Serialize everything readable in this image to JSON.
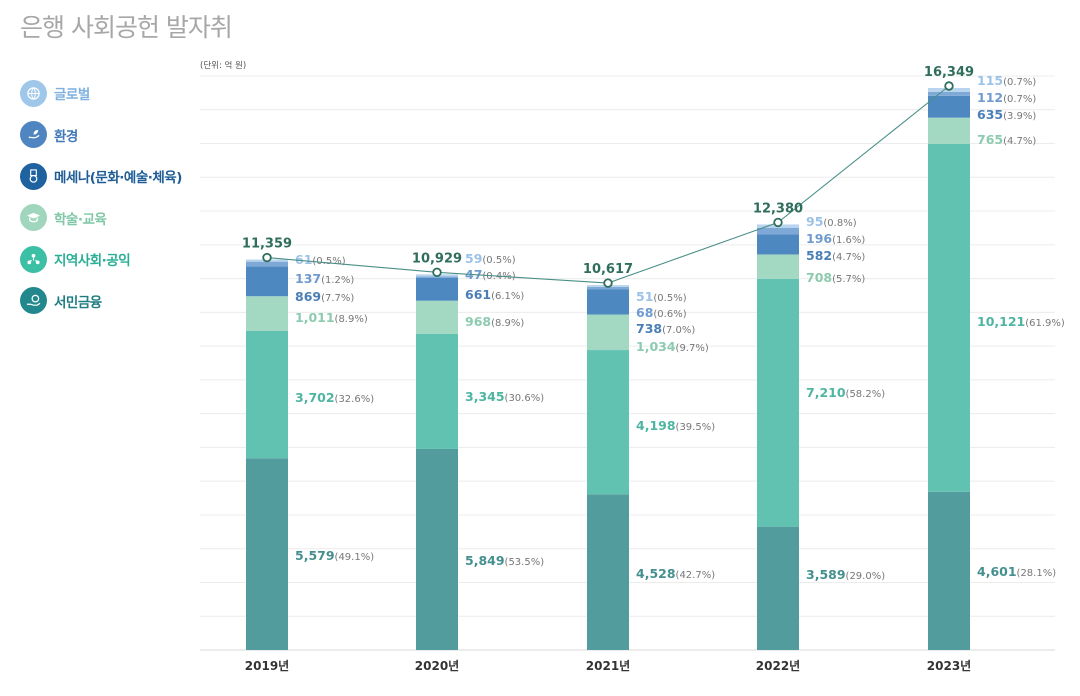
{
  "page": {
    "title": "은행 사회공헌 발자취"
  },
  "legend": [
    {
      "label": "글로벌",
      "icon": "globe-icon",
      "color": "#9fc7ea",
      "text_color": "#7fb0e0"
    },
    {
      "label": "환경",
      "icon": "leaf-hand-icon",
      "color": "#4f86c1",
      "text_color": "#3f78b8"
    },
    {
      "label": "메세나(문화·예술·체육)",
      "icon": "medal-icon",
      "color": "#1e62a0",
      "text_color": "#1d5c96"
    },
    {
      "label": "학술·교육",
      "icon": "education-icon",
      "color": "#9fd6bd",
      "text_color": "#7fc7a6"
    },
    {
      "label": "지역사회·공익",
      "icon": "community-icon",
      "color": "#3bbfa5",
      "text_color": "#2aae95"
    },
    {
      "label": "서민금융",
      "icon": "finance-icon",
      "color": "#23888e",
      "text_color": "#1f7d83"
    }
  ],
  "chart_data": {
    "type": "bar",
    "stacked": true,
    "unit_label": "(단위: 억 원)",
    "categories": [
      "2019년",
      "2020년",
      "2021년",
      "2022년",
      "2023년"
    ],
    "ylim": [
      0,
      17000
    ],
    "grid": true,
    "series": [
      {
        "name": "서민금융",
        "color": "#529c9e",
        "label_color": "#45908f",
        "values": [
          5579,
          5849,
          4528,
          3589,
          4601
        ],
        "labels": [
          "5,579",
          "5,849",
          "4,528",
          "3,589",
          "4,601"
        ],
        "pcts": [
          "(49.1%)",
          "(53.5%)",
          "(42.7%)",
          "(29.0%)",
          "(28.1%)"
        ]
      },
      {
        "name": "지역사회·공익",
        "color": "#61c2b2",
        "label_color": "#4fb5a3",
        "values": [
          3702,
          3345,
          4198,
          7210,
          10121
        ],
        "labels": [
          "3,702",
          "3,345",
          "4,198",
          "7,210",
          "10,121"
        ],
        "pcts": [
          "(32.6%)",
          "(30.6%)",
          "(39.5%)",
          "(58.2%)",
          "(61.9%)"
        ]
      },
      {
        "name": "학술·교육",
        "color": "#a3d8c2",
        "label_color": "#8ccbb0",
        "values": [
          1011,
          968,
          1034,
          708,
          765
        ],
        "labels": [
          "1,011",
          "968",
          "1,034",
          "708",
          "765"
        ],
        "pcts": [
          "(8.9%)",
          "(8.9%)",
          "(9.7%)",
          "(5.7%)",
          "(4.7%)"
        ]
      },
      {
        "name": "메세나(문화·예술·체육)",
        "color": "#4d88c1",
        "label_color": "#4a7fb6",
        "values": [
          869,
          661,
          738,
          582,
          635
        ],
        "labels": [
          "869",
          "661",
          "738",
          "582",
          "635"
        ],
        "pcts": [
          "(7.7%)",
          "(6.1%)",
          "(7.0%)",
          "(4.7%)",
          "(3.9%)"
        ]
      },
      {
        "name": "환경",
        "color": "#7ea8d6",
        "label_color": "#6f9bd0",
        "values": [
          137,
          47,
          68,
          196,
          112
        ],
        "labels": [
          "137",
          "47",
          "68",
          "196",
          "112"
        ],
        "pcts": [
          "(1.2%)",
          "(0.4%)",
          "(0.6%)",
          "(1.6%)",
          "(0.7%)"
        ]
      },
      {
        "name": "글로벌",
        "color": "#b9d4ee",
        "label_color": "#9cc2e8",
        "values": [
          61,
          59,
          51,
          95,
          115
        ],
        "labels": [
          "61",
          "59",
          "51",
          "95",
          "115"
        ],
        "pcts": [
          "(0.5%)",
          "(0.5%)",
          "(0.5%)",
          "(0.8%)",
          "(0.7%)"
        ]
      }
    ],
    "totals": [
      11359,
      10929,
      10617,
      12380,
      16349
    ],
    "total_labels": [
      "11,359",
      "10,929",
      "10,617",
      "12,380",
      "16,349"
    ],
    "total_line_color": "#4a8f87",
    "total_label_color": "#2f6e5c"
  }
}
